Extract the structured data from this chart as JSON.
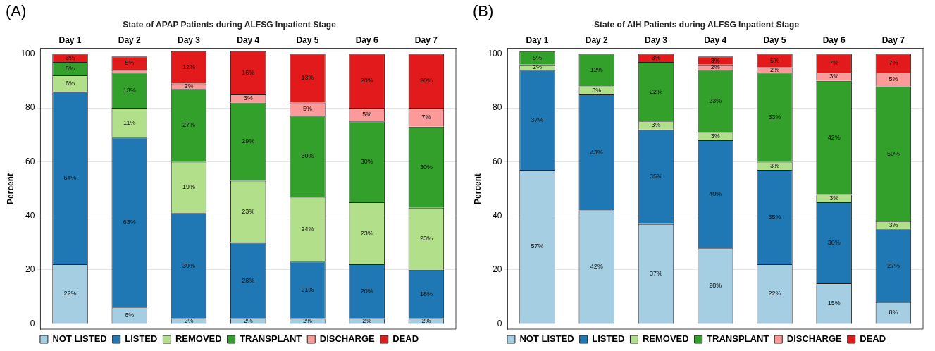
{
  "chart_data": [
    {
      "type": "bar",
      "title": "State of APAP Patients during ALFSG Inpatient Stage",
      "ylabel": "Percent",
      "annotations": [
        "(A)"
      ],
      "categories": [
        "Day 1",
        "Day 2",
        "Day 3",
        "Day 4",
        "Day 5",
        "Day 6",
        "Day 7"
      ],
      "stacked": true,
      "ylim": [
        -2,
        102
      ],
      "yticks": [
        0,
        20,
        40,
        60,
        80,
        100
      ],
      "grid": "y",
      "legend": "bottom",
      "series": [
        {
          "name": "NOT LISTED",
          "color": "#a6cee3",
          "values": [
            22,
            6,
            2,
            2,
            2,
            2,
            2
          ],
          "value_labels": [
            "22%",
            "6%",
            "2%",
            "2%",
            "2%",
            "2%",
            "2%"
          ]
        },
        {
          "name": "LISTED",
          "color": "#1f78b4",
          "values": [
            64,
            63,
            39,
            28,
            21,
            20,
            18
          ],
          "value_labels": [
            "64%",
            "63%",
            "39%",
            "28%",
            "21%",
            "20%",
            "18%"
          ]
        },
        {
          "name": "REMOVED",
          "color": "#b2df8a",
          "values": [
            6,
            11,
            19,
            23,
            24,
            23,
            23
          ],
          "value_labels": [
            "6%",
            "11%",
            "19%",
            "23%",
            "24%",
            "23%",
            "23%"
          ]
        },
        {
          "name": "TRANSPLANT",
          "color": "#33a02c",
          "values": [
            5,
            13,
            27,
            29,
            30,
            30,
            30
          ],
          "value_labels": [
            "5%",
            "13%",
            "27%",
            "29%",
            "30%",
            "30%",
            "30%"
          ]
        },
        {
          "name": "DISCHARGE",
          "color": "#fb9a99",
          "values": [
            0,
            1,
            2,
            3,
            5,
            5,
            7
          ],
          "value_labels": [
            null,
            null,
            "2%",
            "3%",
            "5%",
            "5%",
            "7%"
          ]
        },
        {
          "name": "DEAD",
          "color": "#e31a1c",
          "values": [
            3,
            5,
            12,
            16,
            18,
            20,
            20
          ],
          "value_labels": [
            "3%",
            "5%",
            "12%",
            "16%",
            "18%",
            "20%",
            "20%"
          ]
        }
      ]
    },
    {
      "type": "bar",
      "title": "State of AIH Patients during ALFSG Inpatient Stage",
      "ylabel": "Percent",
      "annotations": [
        "(B)"
      ],
      "categories": [
        "Day 1",
        "Day 2",
        "Day 3",
        "Day 4",
        "Day 5",
        "Day 6",
        "Day 7"
      ],
      "stacked": true,
      "ylim": [
        -2,
        102
      ],
      "yticks": [
        0,
        20,
        40,
        60,
        80,
        100
      ],
      "grid": "y",
      "legend": "bottom",
      "series": [
        {
          "name": "NOT LISTED",
          "color": "#a6cee3",
          "values": [
            57,
            42,
            37,
            28,
            22,
            15,
            8
          ],
          "value_labels": [
            "57%",
            "42%",
            "37%",
            "28%",
            "22%",
            "15%",
            "8%"
          ]
        },
        {
          "name": "LISTED",
          "color": "#1f78b4",
          "values": [
            37,
            43,
            35,
            40,
            35,
            30,
            27
          ],
          "value_labels": [
            "37%",
            "43%",
            "35%",
            "40%",
            "35%",
            "30%",
            "27%"
          ]
        },
        {
          "name": "REMOVED",
          "color": "#b2df8a",
          "values": [
            2,
            3,
            3,
            3,
            3,
            3,
            3
          ],
          "value_labels": [
            "2%",
            "3%",
            "3%",
            "3%",
            "3%",
            "3%",
            "3%"
          ]
        },
        {
          "name": "TRANSPLANT",
          "color": "#33a02c",
          "values": [
            5,
            12,
            22,
            23,
            33,
            42,
            50
          ],
          "value_labels": [
            "5%",
            "12%",
            "22%",
            "23%",
            "33%",
            "42%",
            "50%"
          ]
        },
        {
          "name": "DISCHARGE",
          "color": "#fb9a99",
          "values": [
            0,
            0,
            0,
            2,
            2,
            3,
            5
          ],
          "value_labels": [
            null,
            null,
            null,
            "2%",
            "2%",
            "3%",
            "5%"
          ]
        },
        {
          "name": "DEAD",
          "color": "#e31a1c",
          "values": [
            0,
            0,
            3,
            3,
            5,
            7,
            7
          ],
          "value_labels": [
            null,
            null,
            "3%",
            "3%",
            "5%",
            "7%",
            "7%"
          ]
        }
      ]
    }
  ]
}
